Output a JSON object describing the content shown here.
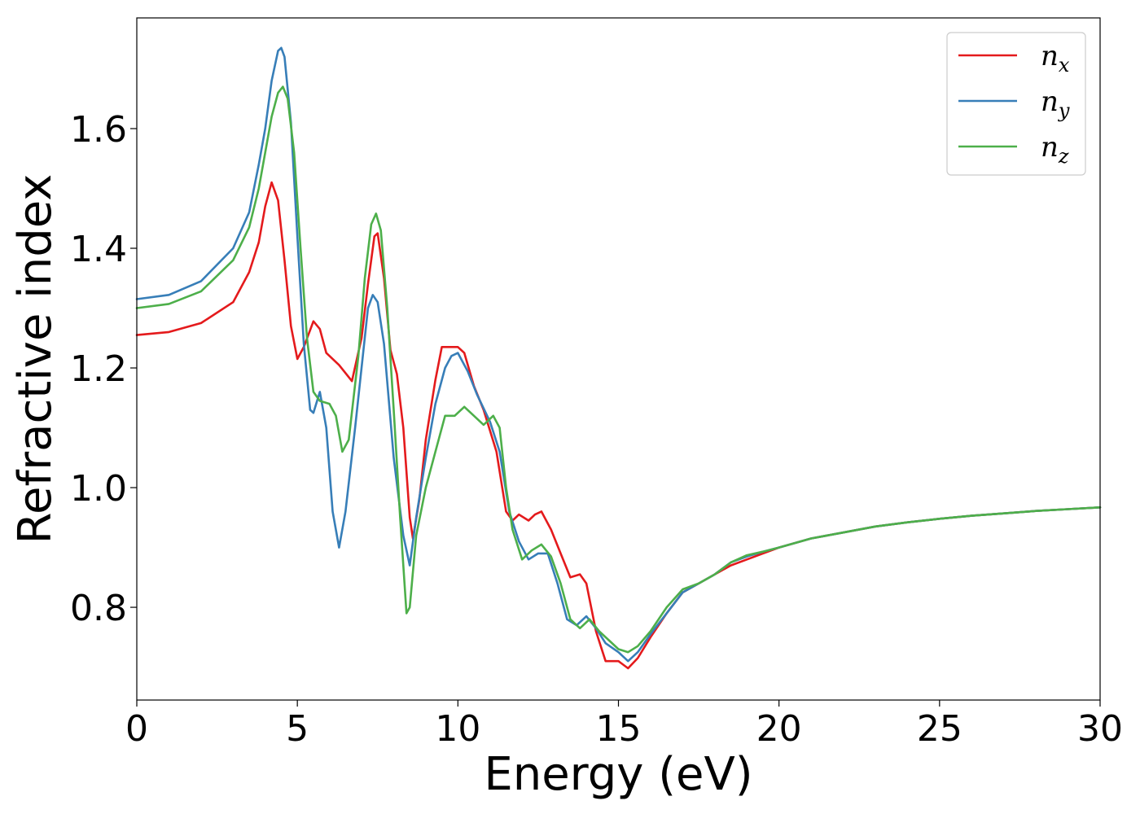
{
  "chart_data": {
    "type": "line",
    "title": "",
    "xlabel": "Energy (eV)",
    "ylabel": "Refractive index",
    "xlim": [
      0,
      30
    ],
    "ylim": [
      0.645,
      1.785
    ],
    "xticks": [
      0,
      5,
      10,
      15,
      20,
      25,
      30
    ],
    "yticks": [
      0.8,
      1.0,
      1.2,
      1.4,
      1.6
    ],
    "xtick_labels": [
      "0",
      "5",
      "10",
      "15",
      "20",
      "25",
      "30"
    ],
    "ytick_labels": [
      "0.8",
      "1.0",
      "1.2",
      "1.4",
      "1.6"
    ],
    "grid": false,
    "legend_position": "top-right",
    "series": [
      {
        "name": "n",
        "subscript": "x",
        "color": "#e41a1c",
        "points": [
          [
            0,
            1.255
          ],
          [
            1,
            1.26
          ],
          [
            2,
            1.275
          ],
          [
            3,
            1.31
          ],
          [
            3.5,
            1.36
          ],
          [
            3.8,
            1.41
          ],
          [
            4.0,
            1.47
          ],
          [
            4.2,
            1.51
          ],
          [
            4.4,
            1.48
          ],
          [
            4.6,
            1.38
          ],
          [
            4.8,
            1.27
          ],
          [
            5.0,
            1.215
          ],
          [
            5.2,
            1.235
          ],
          [
            5.5,
            1.278
          ],
          [
            5.7,
            1.265
          ],
          [
            5.9,
            1.225
          ],
          [
            6.3,
            1.205
          ],
          [
            6.7,
            1.178
          ],
          [
            7.0,
            1.25
          ],
          [
            7.2,
            1.34
          ],
          [
            7.4,
            1.42
          ],
          [
            7.5,
            1.425
          ],
          [
            7.7,
            1.35
          ],
          [
            7.9,
            1.23
          ],
          [
            8.1,
            1.19
          ],
          [
            8.3,
            1.1
          ],
          [
            8.5,
            0.95
          ],
          [
            8.6,
            0.915
          ],
          [
            8.8,
            0.98
          ],
          [
            9.0,
            1.08
          ],
          [
            9.3,
            1.18
          ],
          [
            9.5,
            1.235
          ],
          [
            9.7,
            1.235
          ],
          [
            10.0,
            1.235
          ],
          [
            10.2,
            1.225
          ],
          [
            10.5,
            1.17
          ],
          [
            10.8,
            1.13
          ],
          [
            11.2,
            1.06
          ],
          [
            11.5,
            0.96
          ],
          [
            11.7,
            0.945
          ],
          [
            11.9,
            0.955
          ],
          [
            12.2,
            0.945
          ],
          [
            12.4,
            0.955
          ],
          [
            12.6,
            0.96
          ],
          [
            12.9,
            0.93
          ],
          [
            13.2,
            0.89
          ],
          [
            13.5,
            0.85
          ],
          [
            13.8,
            0.855
          ],
          [
            14.0,
            0.84
          ],
          [
            14.3,
            0.76
          ],
          [
            14.6,
            0.71
          ],
          [
            15.0,
            0.71
          ],
          [
            15.3,
            0.698
          ],
          [
            15.6,
            0.715
          ],
          [
            16.0,
            0.75
          ],
          [
            16.5,
            0.79
          ],
          [
            17.0,
            0.825
          ],
          [
            17.5,
            0.84
          ],
          [
            18.0,
            0.855
          ],
          [
            18.5,
            0.87
          ],
          [
            19.0,
            0.88
          ],
          [
            19.5,
            0.89
          ],
          [
            20.0,
            0.9
          ],
          [
            21,
            0.915
          ],
          [
            22,
            0.925
          ],
          [
            23,
            0.935
          ],
          [
            24,
            0.942
          ],
          [
            25,
            0.948
          ],
          [
            26,
            0.953
          ],
          [
            27,
            0.957
          ],
          [
            28,
            0.961
          ],
          [
            29,
            0.964
          ],
          [
            30,
            0.967
          ]
        ]
      },
      {
        "name": "n",
        "subscript": "y",
        "color": "#377eb8",
        "points": [
          [
            0,
            1.315
          ],
          [
            1,
            1.322
          ],
          [
            2,
            1.345
          ],
          [
            3,
            1.4
          ],
          [
            3.5,
            1.46
          ],
          [
            3.8,
            1.54
          ],
          [
            4.0,
            1.6
          ],
          [
            4.2,
            1.68
          ],
          [
            4.4,
            1.73
          ],
          [
            4.5,
            1.735
          ],
          [
            4.6,
            1.72
          ],
          [
            4.8,
            1.61
          ],
          [
            5.0,
            1.42
          ],
          [
            5.2,
            1.24
          ],
          [
            5.4,
            1.13
          ],
          [
            5.5,
            1.125
          ],
          [
            5.7,
            1.16
          ],
          [
            5.9,
            1.1
          ],
          [
            6.1,
            0.96
          ],
          [
            6.3,
            0.9
          ],
          [
            6.5,
            0.96
          ],
          [
            6.8,
            1.1
          ],
          [
            7.0,
            1.2
          ],
          [
            7.2,
            1.3
          ],
          [
            7.35,
            1.322
          ],
          [
            7.5,
            1.31
          ],
          [
            7.7,
            1.24
          ],
          [
            8.0,
            1.05
          ],
          [
            8.3,
            0.92
          ],
          [
            8.5,
            0.87
          ],
          [
            8.7,
            0.95
          ],
          [
            9.0,
            1.05
          ],
          [
            9.3,
            1.14
          ],
          [
            9.6,
            1.2
          ],
          [
            9.8,
            1.22
          ],
          [
            10.0,
            1.225
          ],
          [
            10.3,
            1.195
          ],
          [
            10.6,
            1.155
          ],
          [
            11.0,
            1.11
          ],
          [
            11.3,
            1.06
          ],
          [
            11.6,
            0.96
          ],
          [
            11.9,
            0.91
          ],
          [
            12.2,
            0.88
          ],
          [
            12.5,
            0.89
          ],
          [
            12.8,
            0.89
          ],
          [
            13.1,
            0.84
          ],
          [
            13.4,
            0.78
          ],
          [
            13.7,
            0.77
          ],
          [
            14.0,
            0.785
          ],
          [
            14.3,
            0.765
          ],
          [
            14.6,
            0.74
          ],
          [
            15.0,
            0.725
          ],
          [
            15.3,
            0.71
          ],
          [
            15.6,
            0.725
          ],
          [
            16.0,
            0.755
          ],
          [
            16.5,
            0.79
          ],
          [
            17.0,
            0.825
          ],
          [
            17.5,
            0.84
          ],
          [
            18.0,
            0.855
          ],
          [
            18.5,
            0.875
          ],
          [
            19.0,
            0.885
          ],
          [
            19.5,
            0.893
          ],
          [
            20.0,
            0.9
          ],
          [
            21,
            0.915
          ],
          [
            22,
            0.925
          ],
          [
            23,
            0.935
          ],
          [
            24,
            0.942
          ],
          [
            25,
            0.948
          ],
          [
            26,
            0.953
          ],
          [
            27,
            0.957
          ],
          [
            28,
            0.961
          ],
          [
            29,
            0.964
          ],
          [
            30,
            0.967
          ]
        ]
      },
      {
        "name": "n",
        "subscript": "z",
        "color": "#4daf4a",
        "points": [
          [
            0,
            1.3
          ],
          [
            1,
            1.307
          ],
          [
            2,
            1.328
          ],
          [
            3,
            1.38
          ],
          [
            3.5,
            1.435
          ],
          [
            3.8,
            1.5
          ],
          [
            4.0,
            1.56
          ],
          [
            4.2,
            1.62
          ],
          [
            4.4,
            1.66
          ],
          [
            4.55,
            1.67
          ],
          [
            4.7,
            1.65
          ],
          [
            4.9,
            1.56
          ],
          [
            5.1,
            1.4
          ],
          [
            5.3,
            1.25
          ],
          [
            5.5,
            1.16
          ],
          [
            5.7,
            1.145
          ],
          [
            6.0,
            1.14
          ],
          [
            6.2,
            1.12
          ],
          [
            6.4,
            1.06
          ],
          [
            6.6,
            1.08
          ],
          [
            6.9,
            1.22
          ],
          [
            7.1,
            1.35
          ],
          [
            7.3,
            1.44
          ],
          [
            7.45,
            1.458
          ],
          [
            7.6,
            1.43
          ],
          [
            7.8,
            1.3
          ],
          [
            8.0,
            1.13
          ],
          [
            8.2,
            0.95
          ],
          [
            8.4,
            0.79
          ],
          [
            8.5,
            0.8
          ],
          [
            8.7,
            0.92
          ],
          [
            9.0,
            1.0
          ],
          [
            9.3,
            1.06
          ],
          [
            9.6,
            1.12
          ],
          [
            9.9,
            1.12
          ],
          [
            10.2,
            1.135
          ],
          [
            10.5,
            1.12
          ],
          [
            10.8,
            1.105
          ],
          [
            11.1,
            1.12
          ],
          [
            11.3,
            1.1
          ],
          [
            11.5,
            1.0
          ],
          [
            11.7,
            0.93
          ],
          [
            12.0,
            0.88
          ],
          [
            12.3,
            0.895
          ],
          [
            12.6,
            0.905
          ],
          [
            12.9,
            0.885
          ],
          [
            13.2,
            0.84
          ],
          [
            13.5,
            0.78
          ],
          [
            13.8,
            0.765
          ],
          [
            14.1,
            0.78
          ],
          [
            14.4,
            0.76
          ],
          [
            14.7,
            0.745
          ],
          [
            15.0,
            0.73
          ],
          [
            15.3,
            0.725
          ],
          [
            15.6,
            0.735
          ],
          [
            16.0,
            0.76
          ],
          [
            16.5,
            0.8
          ],
          [
            17.0,
            0.83
          ],
          [
            17.5,
            0.84
          ],
          [
            18.0,
            0.855
          ],
          [
            18.5,
            0.875
          ],
          [
            19.0,
            0.887
          ],
          [
            19.5,
            0.893
          ],
          [
            20.0,
            0.9
          ],
          [
            21,
            0.915
          ],
          [
            22,
            0.925
          ],
          [
            23,
            0.935
          ],
          [
            24,
            0.942
          ],
          [
            25,
            0.948
          ],
          [
            26,
            0.953
          ],
          [
            27,
            0.957
          ],
          [
            28,
            0.961
          ],
          [
            29,
            0.964
          ],
          [
            30,
            0.967
          ]
        ]
      }
    ]
  }
}
